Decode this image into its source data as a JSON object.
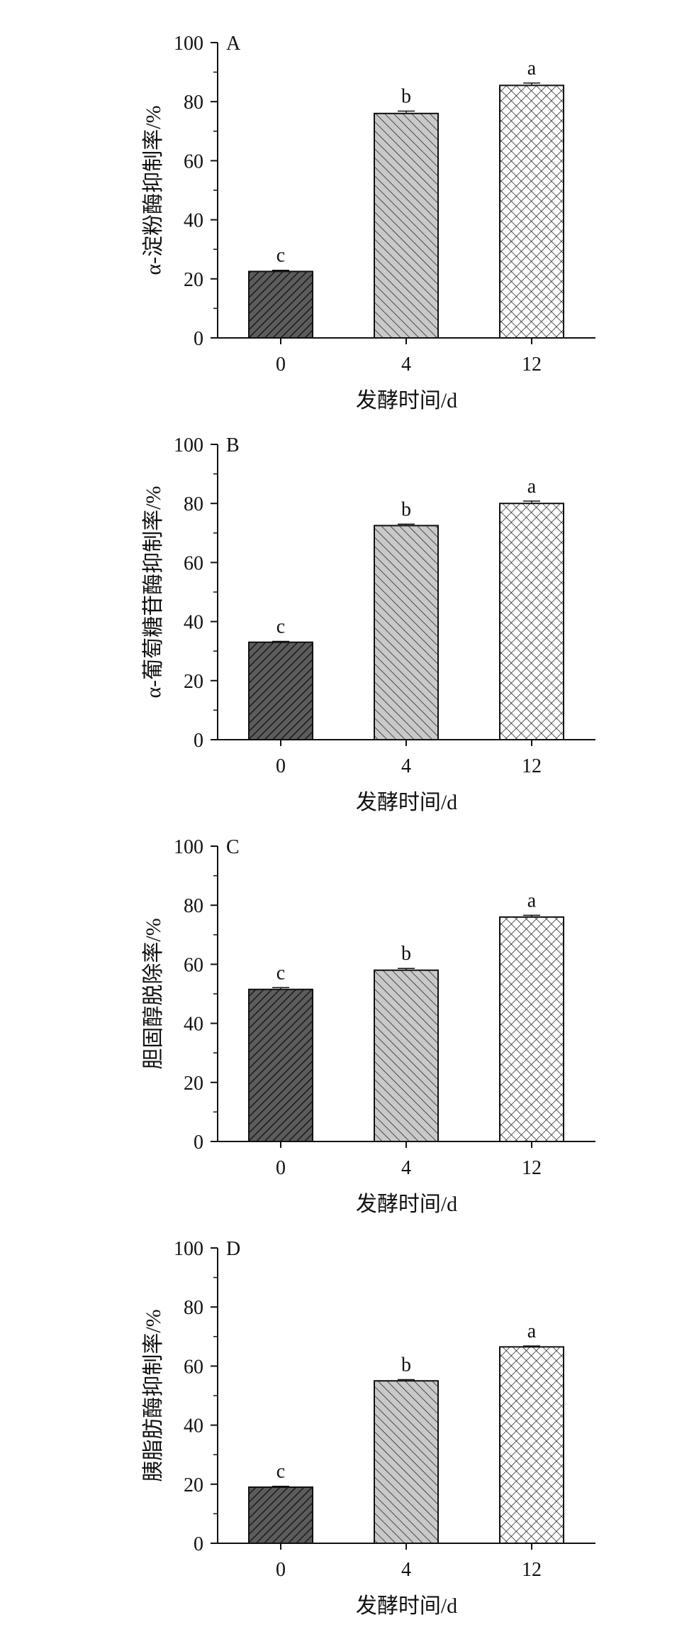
{
  "figure": {
    "colors": {
      "axis": "#111111",
      "bar_outline": "#111111",
      "bar_fill_0": "#5a5a5a",
      "bar_fill_4": "#c8c8c8",
      "bar_fill_12": "#ffffff"
    }
  },
  "chart_data": [
    {
      "type": "bar",
      "panel": "A",
      "categories": [
        "0",
        "4",
        "12"
      ],
      "values": [
        22.5,
        76,
        85.5
      ],
      "errors": [
        0.4,
        0.8,
        0.8
      ],
      "significance": [
        "c",
        "b",
        "a"
      ],
      "xlabel": "发酵时间/d",
      "ylabel": "α-淀粉酶抑制率/%",
      "ylim": [
        0,
        100
      ],
      "yticks": [
        "0",
        "20",
        "40",
        "60",
        "80",
        "100"
      ],
      "patterns": [
        "diag-dense-dark",
        "diag-light",
        "crosshatch"
      ],
      "grid": false
    },
    {
      "type": "bar",
      "panel": "B",
      "categories": [
        "0",
        "4",
        "12"
      ],
      "values": [
        33,
        72.5,
        80
      ],
      "errors": [
        0.3,
        0.5,
        0.8
      ],
      "significance": [
        "c",
        "b",
        "a"
      ],
      "xlabel": "发酵时间/d",
      "ylabel": "α-葡萄糖苷酶抑制率/%",
      "ylim": [
        0,
        100
      ],
      "yticks": [
        "0",
        "20",
        "40",
        "60",
        "80",
        "100"
      ],
      "patterns": [
        "diag-dense-dark",
        "diag-light",
        "crosshatch"
      ],
      "grid": false
    },
    {
      "type": "bar",
      "panel": "C",
      "categories": [
        "0",
        "4",
        "12"
      ],
      "values": [
        51.5,
        58,
        76
      ],
      "errors": [
        0.6,
        0.6,
        0.6
      ],
      "significance": [
        "c",
        "b",
        "a"
      ],
      "xlabel": "发酵时间/d",
      "ylabel": "胆固醇脱除率/%",
      "ylim": [
        0,
        100
      ],
      "yticks": [
        "0",
        "20",
        "40",
        "60",
        "80",
        "100"
      ],
      "patterns": [
        "diag-dense-dark",
        "diag-light",
        "crosshatch"
      ],
      "grid": false
    },
    {
      "type": "bar",
      "panel": "D",
      "categories": [
        "0",
        "4",
        "12"
      ],
      "values": [
        19,
        55,
        66.5
      ],
      "errors": [
        0.3,
        0.4,
        0.3
      ],
      "significance": [
        "c",
        "b",
        "a"
      ],
      "xlabel": "发酵时间/d",
      "ylabel": "胰脂肪酶抑制率/%",
      "ylim": [
        0,
        100
      ],
      "yticks": [
        "0",
        "20",
        "40",
        "60",
        "80",
        "100"
      ],
      "patterns": [
        "diag-dense-dark",
        "diag-light",
        "crosshatch"
      ],
      "grid": false
    }
  ]
}
